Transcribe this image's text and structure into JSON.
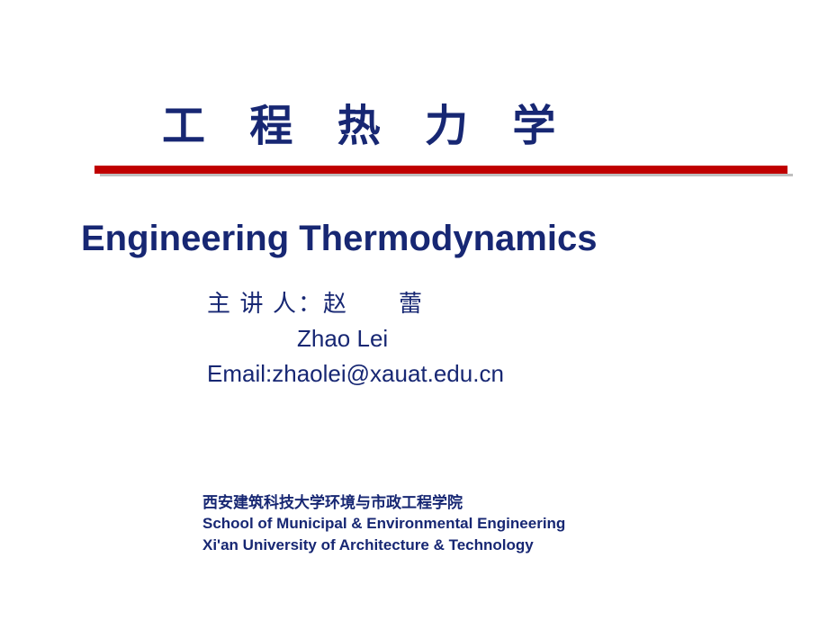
{
  "colors": {
    "title_cn": "#172773",
    "divider": "#c00000",
    "title_en": "#172773",
    "lecturer": "#172773",
    "footer": "#172773",
    "background": "#ffffff"
  },
  "title_cn": "工 程 热 力 学",
  "title_en": "Engineering Thermodynamics",
  "lecturer": {
    "label_cn": "主 讲 人：赵　　蕾",
    "name_en": "Zhao  Lei",
    "email": "Email:zhaolei@xauat.edu.cn"
  },
  "footer": {
    "line1_cn": "西安建筑科技大学环境与市政工程学院",
    "line2_en": "School of Municipal & Environmental Engineering",
    "line3_en": "Xi'an University of Architecture & Technology"
  },
  "typography": {
    "title_cn_fontsize": 48,
    "title_en_fontsize": 40,
    "lecturer_fontsize": 26,
    "footer_fontsize": 17
  }
}
